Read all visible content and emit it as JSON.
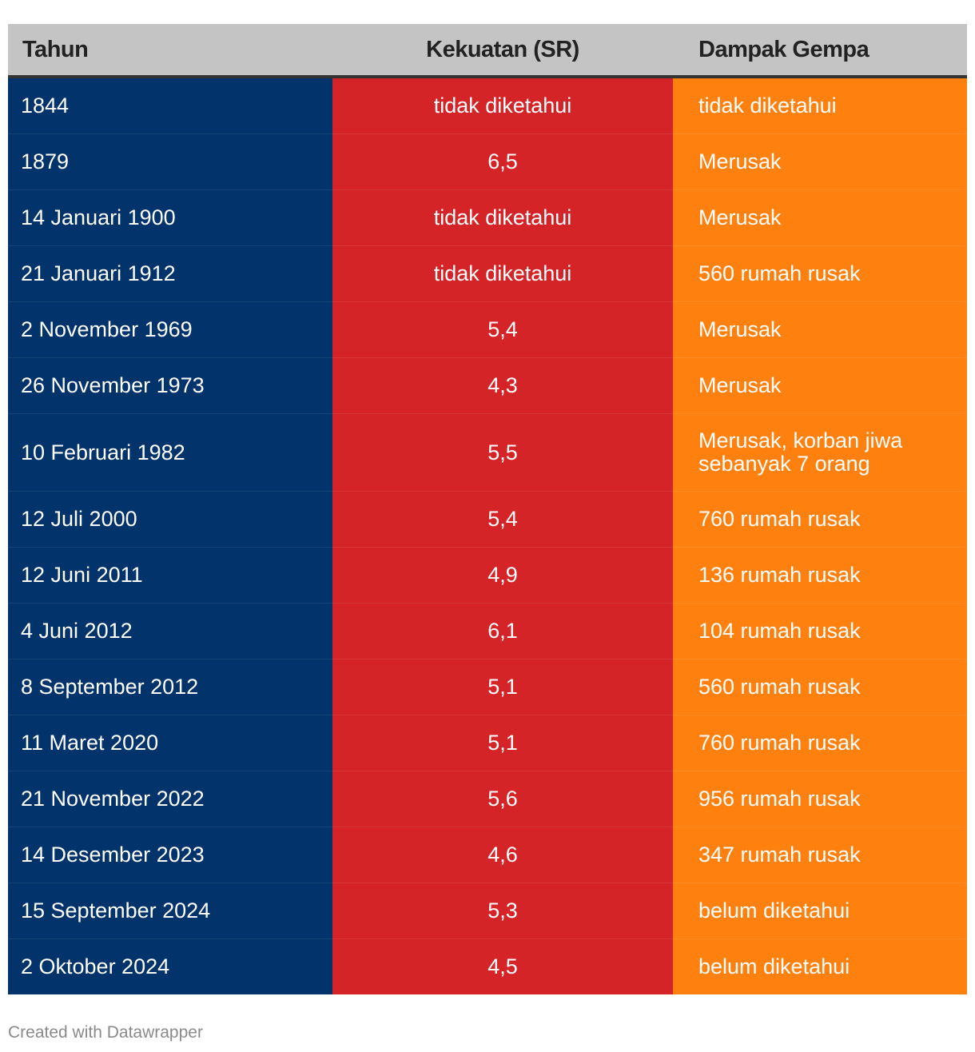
{
  "table": {
    "headers": {
      "year": "Tahun",
      "magnitude": "Kekuatan (SR)",
      "impact": "Dampak Gempa"
    },
    "rows": [
      {
        "year": "1844",
        "magnitude": "tidak diketahui",
        "impact": "tidak diketahui"
      },
      {
        "year": "1879",
        "magnitude": "6,5",
        "impact": "Merusak"
      },
      {
        "year": "14 Januari 1900",
        "magnitude": "tidak diketahui",
        "impact": "Merusak"
      },
      {
        "year": "21 Januari 1912",
        "magnitude": "tidak diketahui",
        "impact": "560 rumah rusak"
      },
      {
        "year": "2 November 1969",
        "magnitude": "5,4",
        "impact": "Merusak"
      },
      {
        "year": "26 November 1973",
        "magnitude": "4,3",
        "impact": "Merusak"
      },
      {
        "year": "10 Februari 1982",
        "magnitude": "5,5",
        "impact": "Merusak, korban jiwa sebanyak 7 orang"
      },
      {
        "year": "12 Juli 2000",
        "magnitude": "5,4",
        "impact": "760 rumah rusak"
      },
      {
        "year": "12 Juni 2011",
        "magnitude": "4,9",
        "impact": "136 rumah rusak"
      },
      {
        "year": "4 Juni 2012",
        "magnitude": "6,1",
        "impact": "104 rumah rusak"
      },
      {
        "year": "8 September 2012",
        "magnitude": "5,1",
        "impact": "560 rumah rusak"
      },
      {
        "year": "11 Maret 2020",
        "magnitude": "5,1",
        "impact": "760 rumah rusak"
      },
      {
        "year": "21 November 2022",
        "magnitude": "5,6",
        "impact": "956 rumah rusak"
      },
      {
        "year": "14 Desember 2023",
        "magnitude": "4,6",
        "impact": "347 rumah rusak"
      },
      {
        "year": "15 September 2024",
        "magnitude": "5,3",
        "impact": "belum diketahui"
      },
      {
        "year": "2 Oktober 2024",
        "magnitude": "4,5",
        "impact": "belum diketahui"
      }
    ]
  },
  "colors": {
    "header_bg": "#c4c4c4",
    "year_col": "#02336a",
    "magnitude_col": "#d52427",
    "impact_col": "#fe800f"
  },
  "footer": {
    "credit": "Created with Datawrapper"
  }
}
